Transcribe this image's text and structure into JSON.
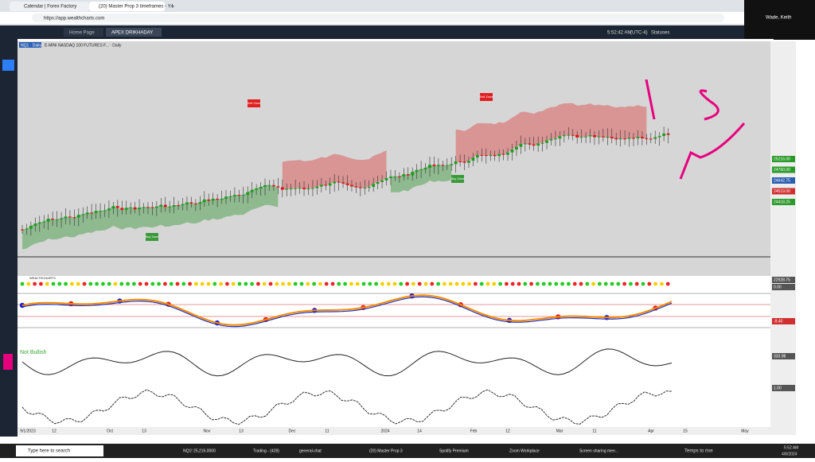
{
  "browser": {
    "tabs": [
      "Calendar | Forex Factory",
      "(20) Master Prop 3 timeframes - Y..."
    ],
    "url": "https://app.wealthcharts.com",
    "user": "Wade, Keith"
  },
  "app": {
    "tabs": [
      "Home Page",
      "APEX DRIKHADAY"
    ],
    "time": "5:52:42 AM",
    "timezone": "(UTC-4)",
    "status": "Statuses"
  },
  "chart": {
    "symbol": "NQ1 · Daily",
    "title": "E-MINI NASDAQ 100 FUTURES F... · Daily",
    "price_labels": [
      "25216.00",
      "24760.00",
      "24642.75",
      "24519.00",
      "24418.25"
    ],
    "panel_labels": [
      "22928.75",
      "0.00",
      "-9.40",
      "333.98",
      "1.00"
    ],
    "date_labels": [
      "9/1/2023",
      "12",
      "Oct",
      "13",
      "Nov",
      "13",
      "Dec",
      "11",
      "2024",
      "14",
      "Feb",
      "12",
      "Mar",
      "11",
      "Apr",
      "15",
      "May"
    ],
    "zones": [
      "Sell Zone",
      "Sell Zone",
      "Buy Zone",
      "Buy Zone"
    ],
    "brand": "WEALTHCHARTS",
    "indicator": "Not Bullish"
  },
  "taskbar": {
    "search": "Type here to search",
    "items": [
      "NQ1! 25,216.0000",
      "Trading - (428)",
      "general-chat",
      "(20) Master Prop 3",
      "Spotify Premium",
      "Zoom Workplace",
      "Screen sharing mee..."
    ],
    "weather": "Temps to rise",
    "time": "5:52 AM",
    "date": "4/8/2024"
  }
}
